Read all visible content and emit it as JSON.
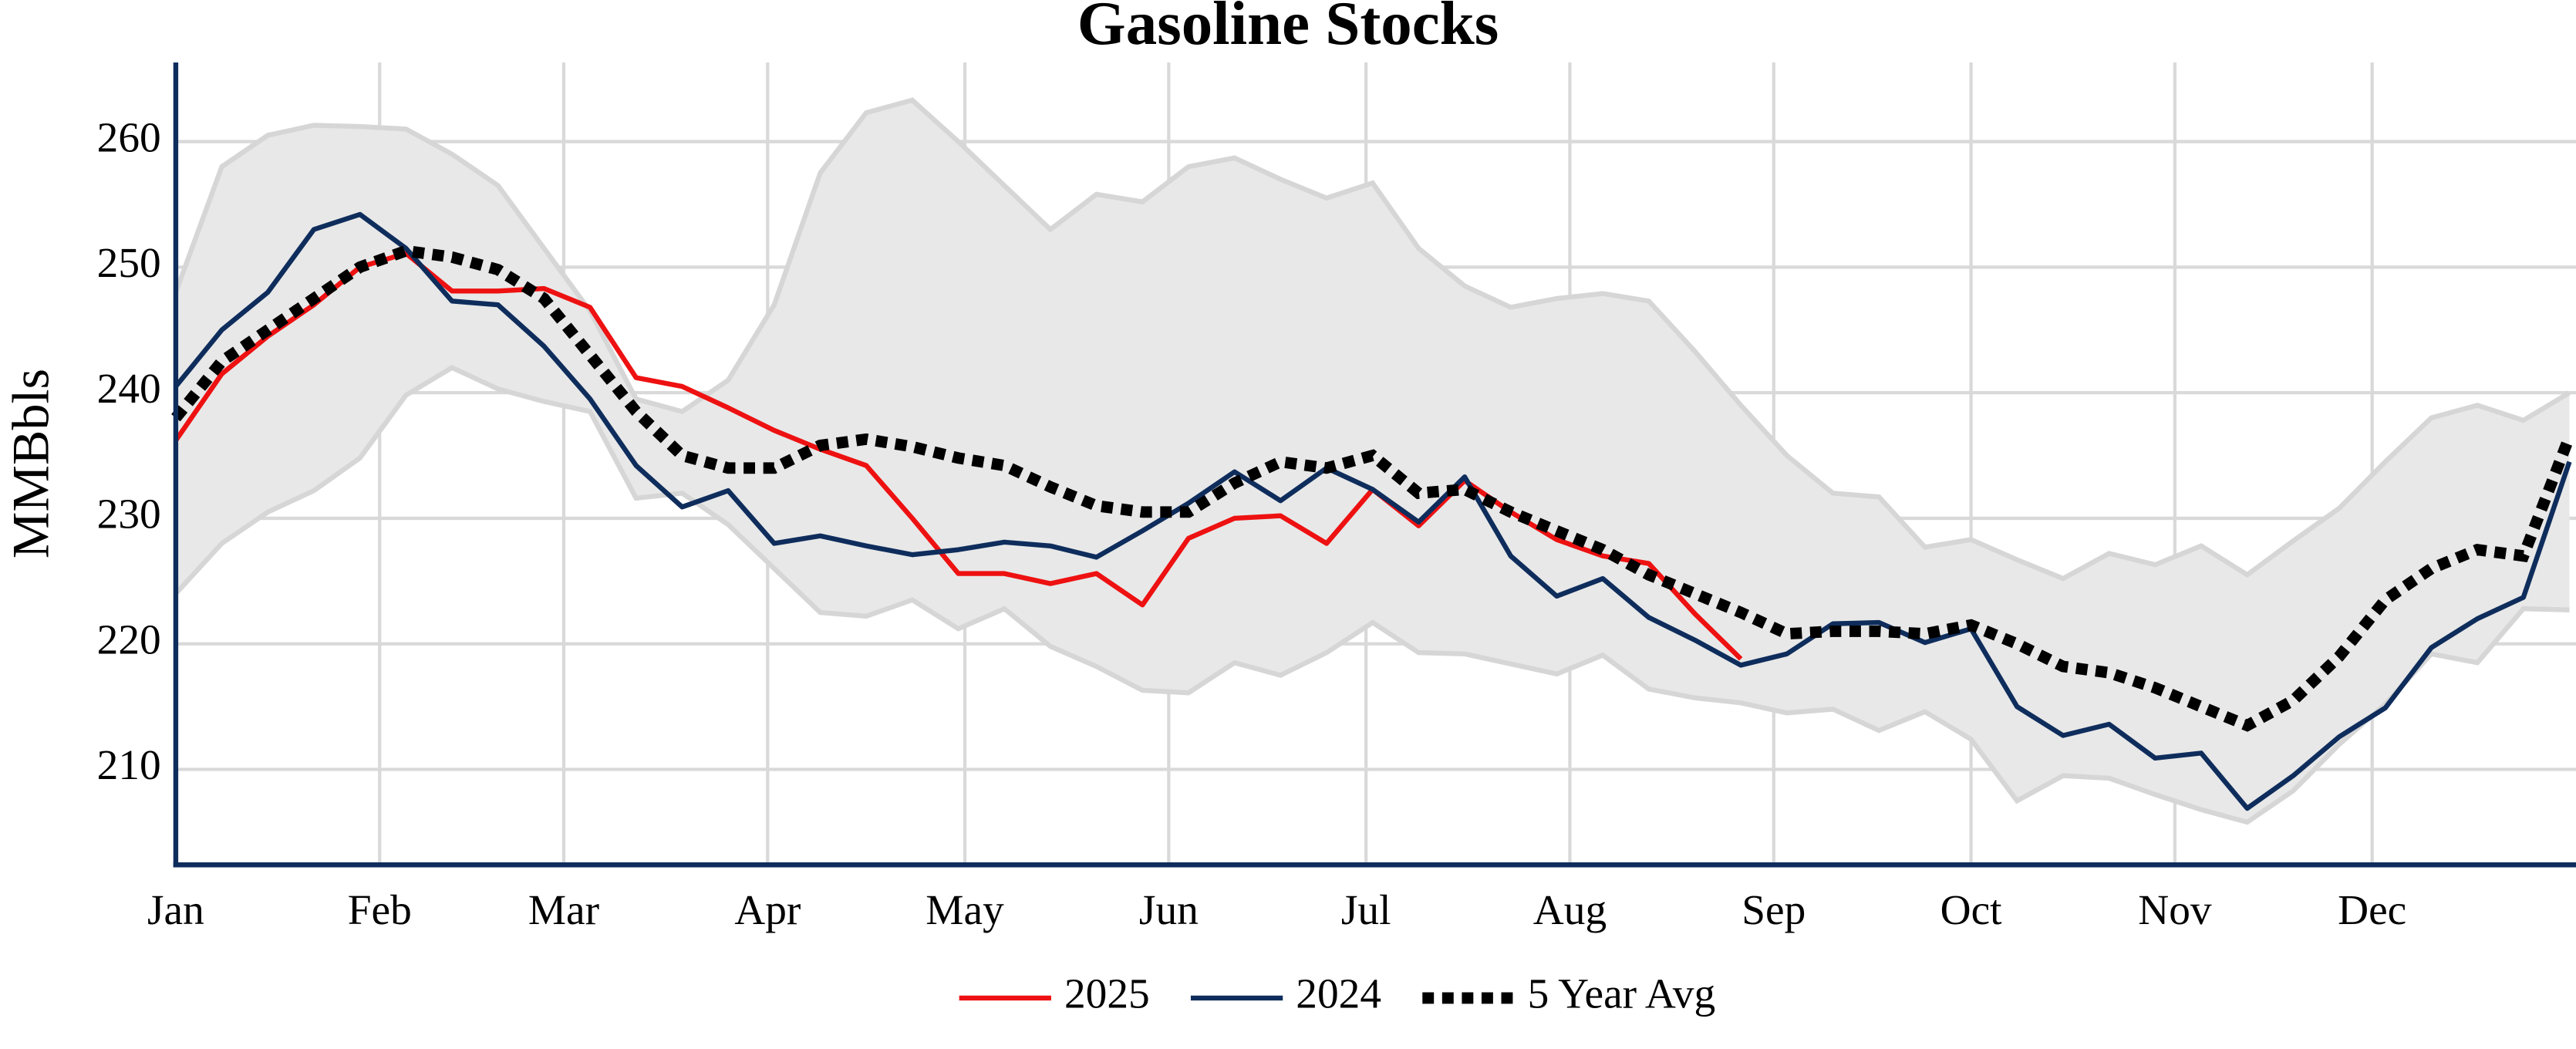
{
  "chart_data": {
    "type": "line",
    "title": "Gasoline Stocks",
    "y_label": "MMBbls",
    "xlim": [
      0,
      365
    ],
    "xticks": [
      {
        "value": 0,
        "label": "Jan"
      },
      {
        "value": 31,
        "label": "Feb"
      },
      {
        "value": 59,
        "label": "Mar"
      },
      {
        "value": 90,
        "label": "Apr"
      },
      {
        "value": 120,
        "label": "May"
      },
      {
        "value": 151,
        "label": "Jun"
      },
      {
        "value": 181,
        "label": "Jul"
      },
      {
        "value": 212,
        "label": "Aug"
      },
      {
        "value": 243,
        "label": "Sep"
      },
      {
        "value": 273,
        "label": "Oct"
      },
      {
        "value": 304,
        "label": "Nov"
      },
      {
        "value": 334,
        "label": "Dec"
      }
    ],
    "ylim": [
      202.4,
      266.3
    ],
    "yticks": [
      210,
      220,
      230,
      240,
      250,
      260
    ],
    "grid": true,
    "legend": "bottom",
    "band": {
      "color": "#e8e8e8",
      "edge_color": "#d6d6d6",
      "x": [
        0,
        7,
        14,
        21,
        28,
        35,
        42,
        49,
        56,
        63,
        70,
        77,
        84,
        91,
        98,
        105,
        112,
        119,
        126,
        133,
        140,
        147,
        154,
        161,
        168,
        175,
        182,
        189,
        196,
        203,
        210,
        217,
        224,
        231,
        238,
        245,
        252,
        259,
        266,
        273,
        280,
        287,
        294,
        301,
        308,
        315,
        322,
        329,
        336,
        343,
        350,
        357,
        364
      ],
      "upper": [
        248,
        258,
        260.5,
        261.3,
        261.2,
        261,
        259,
        256.5,
        251.5,
        246.5,
        239.5,
        238.5,
        241,
        247,
        257.5,
        262.3,
        263.3,
        260,
        256.5,
        253,
        255.8,
        255.2,
        258,
        258.7,
        257,
        255.5,
        256.7,
        251.5,
        248.5,
        246.8,
        247.5,
        247.9,
        247.3,
        243.3,
        239,
        235,
        232,
        231.7,
        227.7,
        228.3,
        226.7,
        225.2,
        227.2,
        226.3,
        227.8,
        225.5,
        228.2,
        230.8,
        234.5,
        238,
        239,
        237.8,
        240
      ],
      "lower": [
        224,
        228,
        230.5,
        232.2,
        234.8,
        239.8,
        242,
        240.3,
        239.3,
        238.5,
        231.6,
        232,
        229.5,
        226,
        222.5,
        222.2,
        223.5,
        221.2,
        222.8,
        219.8,
        218.2,
        216.3,
        216.1,
        218.5,
        217.5,
        219.3,
        221.7,
        219.3,
        219.2,
        218.4,
        217.6,
        219.1,
        216.4,
        215.7,
        215.3,
        214.5,
        214.8,
        213.1,
        214.6,
        212.4,
        207.5,
        209.5,
        209.3,
        208,
        206.8,
        205.8,
        208.3,
        212,
        215.2,
        219.2,
        218.5,
        222.8,
        222.7
      ]
    },
    "series": [
      {
        "name": "2025",
        "color": "#ee1111",
        "style": "solid",
        "x": [
          0,
          7,
          14,
          21,
          28,
          35,
          42,
          49,
          56,
          63,
          70,
          77,
          84,
          91,
          98,
          105,
          112,
          119,
          126,
          133,
          140,
          147,
          154,
          161,
          168,
          175,
          182,
          189,
          196,
          203,
          210,
          217,
          224,
          231,
          238
        ],
        "values": [
          236.2,
          241.5,
          244.5,
          247,
          250,
          251.1,
          248.1,
          248.1,
          248.3,
          246.8,
          241.2,
          240.5,
          238.8,
          237,
          235.5,
          234.2,
          230,
          225.6,
          225.6,
          224.8,
          225.6,
          223.1,
          228.4,
          230,
          230.2,
          228,
          232.3,
          229.4,
          233,
          230.5,
          228.3,
          227,
          226.4,
          222.4,
          218.8
        ]
      },
      {
        "name": "2024",
        "color": "#0e2d5c",
        "style": "solid",
        "x": [
          0,
          7,
          14,
          21,
          28,
          35,
          42,
          49,
          56,
          63,
          70,
          77,
          84,
          91,
          98,
          105,
          112,
          119,
          126,
          133,
          140,
          147,
          154,
          161,
          168,
          175,
          182,
          189,
          196,
          203,
          210,
          217,
          224,
          231,
          238,
          245,
          252,
          259,
          266,
          273,
          280,
          287,
          294,
          301,
          308,
          315,
          322,
          329,
          336,
          343,
          350,
          357,
          364
        ],
        "values": [
          240.5,
          245,
          248,
          253,
          254.2,
          251.5,
          247.3,
          247,
          243.7,
          239.5,
          234.2,
          230.9,
          232.2,
          228,
          228.6,
          227.8,
          227.1,
          227.5,
          228.1,
          227.8,
          226.9,
          229,
          231.2,
          233.7,
          231.4,
          234,
          232.3,
          229.7,
          233.3,
          227,
          223.8,
          225.2,
          222.1,
          220.3,
          218.3,
          219.2,
          221.6,
          221.7,
          220.1,
          221.2,
          215,
          212.7,
          213.6,
          210.9,
          211.3,
          206.9,
          209.5,
          212.6,
          214.9,
          219.7,
          222,
          223.7,
          234.5
        ]
      },
      {
        "name": "5 Year Avg",
        "color": "#000000",
        "style": "dotted",
        "x": [
          0,
          7,
          14,
          21,
          28,
          35,
          42,
          49,
          56,
          63,
          70,
          77,
          84,
          91,
          98,
          105,
          112,
          119,
          126,
          133,
          140,
          147,
          154,
          161,
          168,
          175,
          182,
          189,
          196,
          203,
          210,
          217,
          224,
          231,
          238,
          245,
          252,
          259,
          266,
          273,
          280,
          287,
          294,
          301,
          308,
          315,
          322,
          329,
          336,
          343,
          350,
          357,
          364
        ],
        "values": [
          238,
          242.5,
          245,
          247.5,
          250,
          251.3,
          250.8,
          249.8,
          247.5,
          243,
          238.5,
          235,
          234,
          234,
          235.8,
          236.3,
          235.7,
          234.8,
          234.2,
          232.5,
          231,
          230.5,
          230.5,
          232.8,
          234.5,
          234,
          235,
          232,
          232.3,
          230.5,
          229,
          227.5,
          225.5,
          224,
          222.5,
          220.8,
          221,
          221,
          220.8,
          221.5,
          220,
          218.2,
          217.7,
          216.5,
          215,
          213.5,
          215.5,
          219,
          223.5,
          226,
          227.5,
          227,
          236.5
        ]
      }
    ]
  }
}
